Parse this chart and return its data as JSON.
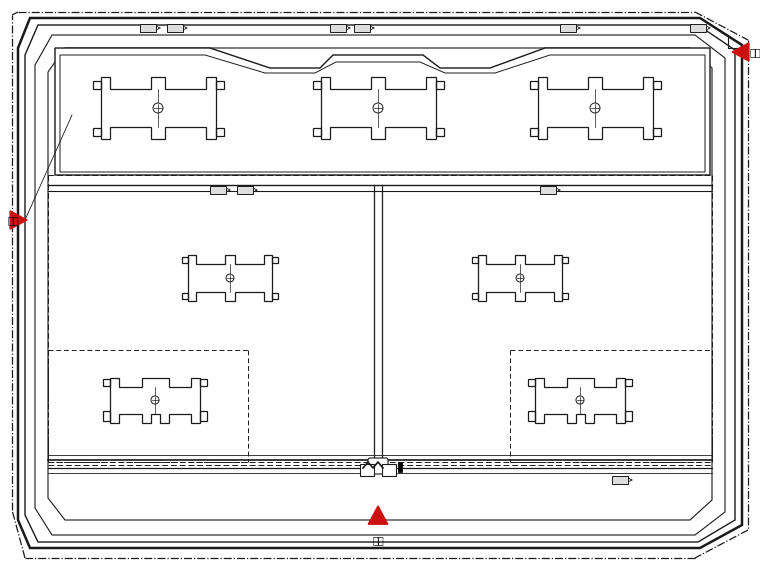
{
  "background_color": "#ffffff",
  "line_color": "#1a1a1a",
  "red_color": "#cc1111",
  "figsize": [
    7.6,
    5.7
  ],
  "dpi": 100,
  "title": "",
  "xlim": [
    0,
    760
  ],
  "ylim": [
    0,
    570
  ]
}
